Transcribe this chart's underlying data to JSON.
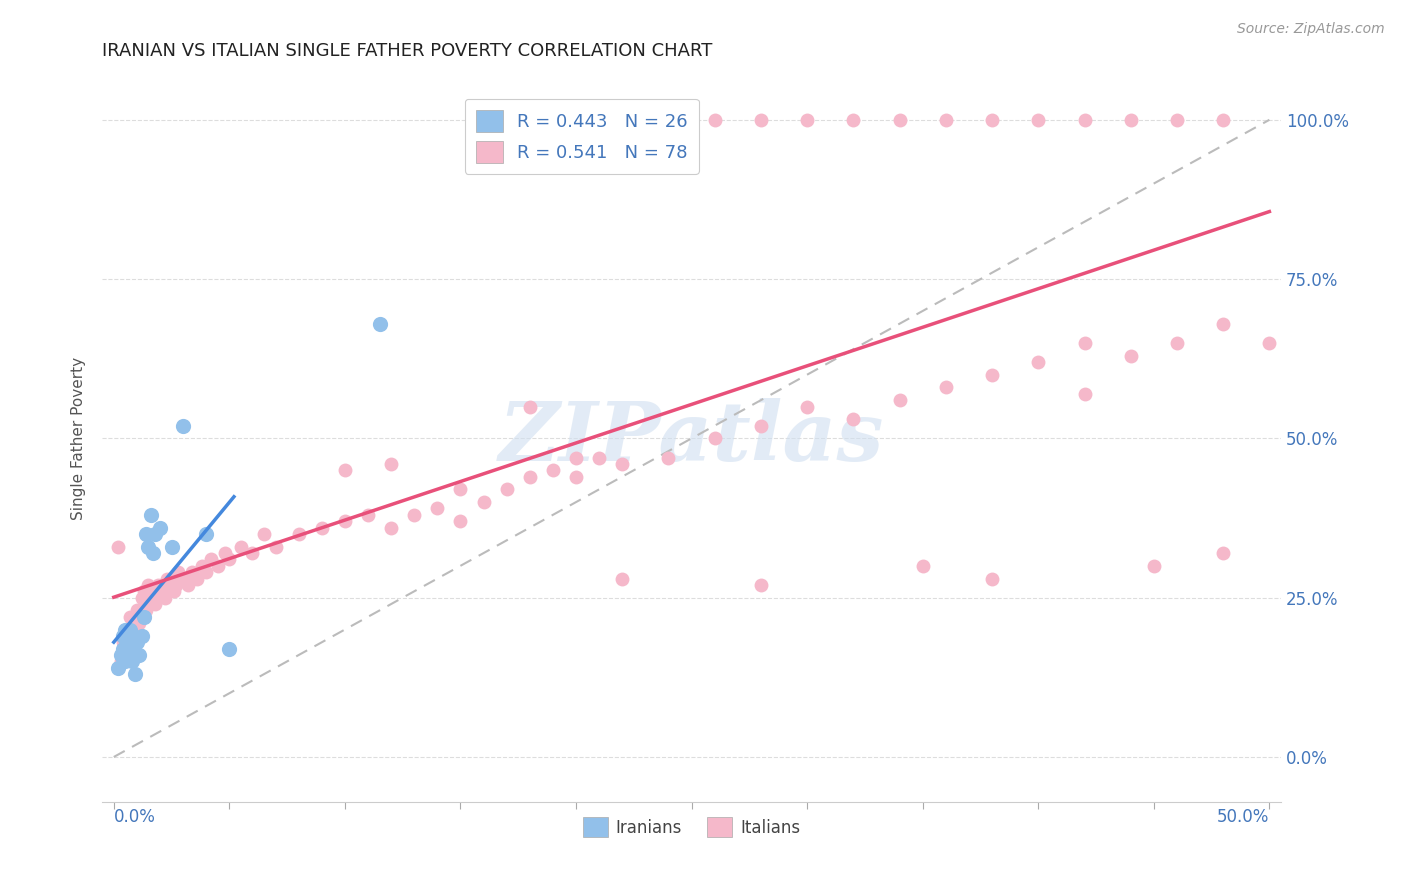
{
  "title": "IRANIAN VS ITALIAN SINGLE FATHER POVERTY CORRELATION CHART",
  "source": "Source: ZipAtlas.com",
  "ylabel": "Single Father Poverty",
  "ytick_labels": [
    "0.0%",
    "25.0%",
    "50.0%",
    "75.0%",
    "100.0%"
  ],
  "ytick_values": [
    0.0,
    0.25,
    0.5,
    0.75,
    1.0
  ],
  "xlim": [
    -0.005,
    0.505
  ],
  "ylim": [
    -0.07,
    1.07
  ],
  "watermark_text": "ZIPatlas",
  "legend_iranian_label": "R = 0.443   N = 26",
  "legend_italian_label": "R = 0.541   N = 78",
  "iranian_color": "#92c0ea",
  "italian_color": "#f5b8ca",
  "iranian_line_color": "#4488dd",
  "italian_line_color": "#e8507a",
  "ref_line_color": "#bbbbbb",
  "background_color": "#ffffff",
  "title_fontsize": 13,
  "right_tick_color": "#4477bb",
  "bottom_label_color": "#4477bb",
  "iranians_x": [
    0.002,
    0.003,
    0.004,
    0.004,
    0.005,
    0.005,
    0.006,
    0.007,
    0.007,
    0.008,
    0.009,
    0.01,
    0.011,
    0.012,
    0.013,
    0.014,
    0.015,
    0.016,
    0.017,
    0.018,
    0.02,
    0.025,
    0.03,
    0.04,
    0.05,
    0.115
  ],
  "iranians_y": [
    0.14,
    0.16,
    0.17,
    0.19,
    0.15,
    0.2,
    0.18,
    0.17,
    0.2,
    0.15,
    0.13,
    0.18,
    0.16,
    0.19,
    0.22,
    0.35,
    0.33,
    0.38,
    0.32,
    0.35,
    0.36,
    0.33,
    0.52,
    0.35,
    0.17,
    0.68
  ],
  "italians_x": [
    0.002,
    0.003,
    0.004,
    0.005,
    0.006,
    0.006,
    0.007,
    0.007,
    0.008,
    0.008,
    0.009,
    0.009,
    0.01,
    0.01,
    0.011,
    0.012,
    0.012,
    0.013,
    0.013,
    0.014,
    0.015,
    0.015,
    0.016,
    0.017,
    0.018,
    0.019,
    0.02,
    0.021,
    0.022,
    0.023,
    0.024,
    0.025,
    0.026,
    0.027,
    0.028,
    0.03,
    0.032,
    0.034,
    0.036,
    0.038,
    0.04,
    0.042,
    0.045,
    0.048,
    0.05,
    0.055,
    0.06,
    0.065,
    0.07,
    0.08,
    0.09,
    0.1,
    0.11,
    0.12,
    0.13,
    0.14,
    0.15,
    0.16,
    0.17,
    0.18,
    0.19,
    0.2,
    0.21,
    0.22,
    0.24,
    0.26,
    0.28,
    0.3,
    0.32,
    0.34,
    0.36,
    0.38,
    0.4,
    0.42,
    0.44,
    0.46,
    0.48,
    0.5
  ],
  "italians_y": [
    0.33,
    0.15,
    0.18,
    0.2,
    0.16,
    0.19,
    0.18,
    0.22,
    0.17,
    0.2,
    0.19,
    0.22,
    0.2,
    0.23,
    0.21,
    0.22,
    0.25,
    0.22,
    0.26,
    0.23,
    0.24,
    0.27,
    0.25,
    0.26,
    0.24,
    0.27,
    0.26,
    0.27,
    0.25,
    0.28,
    0.27,
    0.28,
    0.26,
    0.27,
    0.29,
    0.28,
    0.27,
    0.29,
    0.28,
    0.3,
    0.29,
    0.31,
    0.3,
    0.32,
    0.31,
    0.33,
    0.32,
    0.35,
    0.33,
    0.35,
    0.36,
    0.37,
    0.38,
    0.36,
    0.38,
    0.39,
    0.37,
    0.4,
    0.42,
    0.44,
    0.45,
    0.44,
    0.47,
    0.46,
    0.47,
    0.5,
    0.52,
    0.55,
    0.53,
    0.56,
    0.58,
    0.6,
    0.62,
    0.65,
    0.63,
    0.65,
    0.68,
    0.65
  ],
  "italians_x_top": [
    0.17,
    0.2,
    0.22,
    0.24,
    0.26,
    0.28,
    0.3,
    0.32,
    0.34,
    0.36,
    0.38,
    0.4,
    0.42,
    0.44,
    0.46,
    0.48
  ],
  "italians_y_top": [
    1.0,
    1.0,
    1.0,
    1.0,
    1.0,
    1.0,
    1.0,
    1.0,
    1.0,
    1.0,
    1.0,
    1.0,
    1.0,
    1.0,
    1.0,
    1.0
  ],
  "italian_extra_x": [
    0.1,
    0.12,
    0.15,
    0.18,
    0.2,
    0.22,
    0.28,
    0.35,
    0.38,
    0.42,
    0.45,
    0.48
  ],
  "italian_extra_y": [
    0.45,
    0.46,
    0.42,
    0.55,
    0.47,
    0.28,
    0.27,
    0.3,
    0.28,
    0.57,
    0.3,
    0.32
  ]
}
